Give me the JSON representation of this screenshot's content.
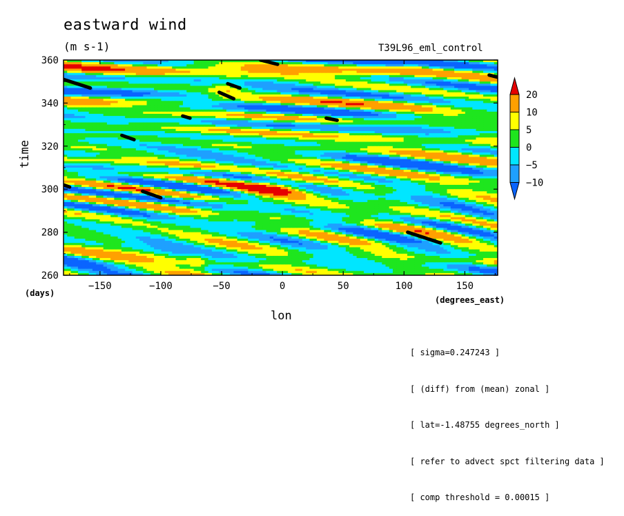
{
  "chart_data": {
    "type": "heatmap",
    "title": "eastward wind",
    "units": "(m s-1)",
    "experiment": "T39L96_eml_control",
    "xlabel": "lon",
    "ylabel": "time",
    "x_unit_label": "(degrees_east)",
    "y_unit_label": "(days)",
    "xlim": [
      -180,
      177
    ],
    "ylim": [
      260,
      360
    ],
    "x_ticks": [
      -150,
      -100,
      -50,
      0,
      50,
      100,
      150
    ],
    "y_ticks": [
      260,
      280,
      300,
      320,
      340,
      360
    ],
    "colorbar": {
      "levels": [
        -10,
        -5,
        0,
        5,
        10,
        20
      ],
      "level_labels": [
        "-10",
        "-5",
        "0",
        "5",
        "10",
        "20"
      ],
      "colors": [
        "#0a64ff",
        "#1ea0ff",
        "#00e6ff",
        "#1ee61e",
        "#ffff00",
        "#ffa000",
        "#e60000"
      ],
      "extend": "both"
    },
    "features": [
      {
        "name": "strong westerly streak",
        "lon_range": [
          -35,
          25
        ],
        "time_range": [
          296,
          306
        ],
        "value": 20
      },
      {
        "name": "westerly patch",
        "lon_range": [
          -80,
          -60
        ],
        "time_range": [
          262,
          272
        ],
        "value": 10
      },
      {
        "name": "westerly patch",
        "lon_range": [
          -60,
          -30
        ],
        "time_range": [
          342,
          352
        ],
        "value": 10
      },
      {
        "name": "westerly patch",
        "lon_range": [
          95,
          125
        ],
        "time_range": [
          354,
          360
        ],
        "value": 10
      }
    ],
    "black_segments": [
      {
        "lon": [
          -180,
          -158
        ],
        "time": [
          351,
          347
        ]
      },
      {
        "lon": [
          -45,
          -35
        ],
        "time": [
          349,
          347
        ]
      },
      {
        "lon": [
          -52,
          -40
        ],
        "time": [
          345,
          342
        ]
      },
      {
        "lon": [
          -18,
          -4
        ],
        "time": [
          360,
          358
        ]
      },
      {
        "lon": [
          -82,
          -76
        ],
        "time": [
          334,
          333
        ]
      },
      {
        "lon": [
          -132,
          -122
        ],
        "time": [
          325,
          323
        ]
      },
      {
        "lon": [
          36,
          45
        ],
        "time": [
          333,
          332
        ]
      },
      {
        "lon": [
          -115,
          -100
        ],
        "time": [
          299,
          296
        ]
      },
      {
        "lon": [
          103,
          130
        ],
        "time": [
          280,
          275
        ]
      },
      {
        "lon": [
          170,
          177
        ],
        "time": [
          353,
          352
        ]
      },
      {
        "lon": [
          -180,
          -175
        ],
        "time": [
          302,
          301
        ]
      }
    ],
    "annotations": [
      "[ sigma=0.247243 ]",
      "[ (diff) from (mean) zonal ]",
      "[ lat=-1.48755 degrees_north ]",
      "[ refer to advect spct filtering data ]",
      "[ comp threshold = 0.00015 ]"
    ]
  }
}
